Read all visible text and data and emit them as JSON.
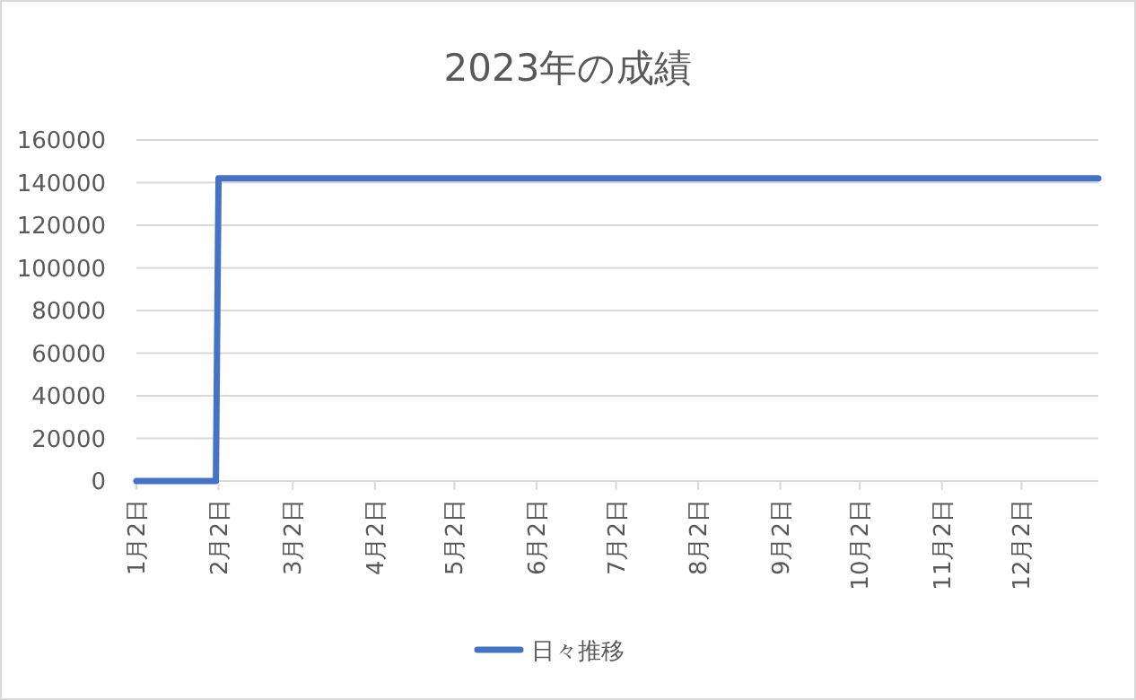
{
  "chart_data": {
    "type": "line",
    "title": "2023年の成績",
    "x": [
      "--01-02",
      "--02-01",
      "--02-02",
      "--12-31"
    ],
    "series": [
      {
        "name": "日々推移",
        "color": "#4472c4",
        "values": [
          0,
          0,
          142000,
          142000
        ]
      }
    ],
    "xlim": [
      "--01-02",
      "--12-31"
    ],
    "xticks": [
      {
        "value": "--01-02",
        "label": "1月2日"
      },
      {
        "value": "--02-02",
        "label": "2月2日"
      },
      {
        "value": "--03-02",
        "label": "3月2日"
      },
      {
        "value": "--04-02",
        "label": "4月2日"
      },
      {
        "value": "--05-02",
        "label": "5月2日"
      },
      {
        "value": "--06-02",
        "label": "6月2日"
      },
      {
        "value": "--07-02",
        "label": "7月2日"
      },
      {
        "value": "--08-02",
        "label": "8月2日"
      },
      {
        "value": "--09-02",
        "label": "9月2日"
      },
      {
        "value": "--10-02",
        "label": "10月2日"
      },
      {
        "value": "--11-02",
        "label": "11月2日"
      },
      {
        "value": "--12-02",
        "label": "12月2日"
      }
    ],
    "ylim": [
      0,
      160000
    ],
    "yticks": [
      0,
      20000,
      40000,
      60000,
      80000,
      100000,
      120000,
      140000,
      160000
    ],
    "grid": "y",
    "legend": "bottom"
  }
}
